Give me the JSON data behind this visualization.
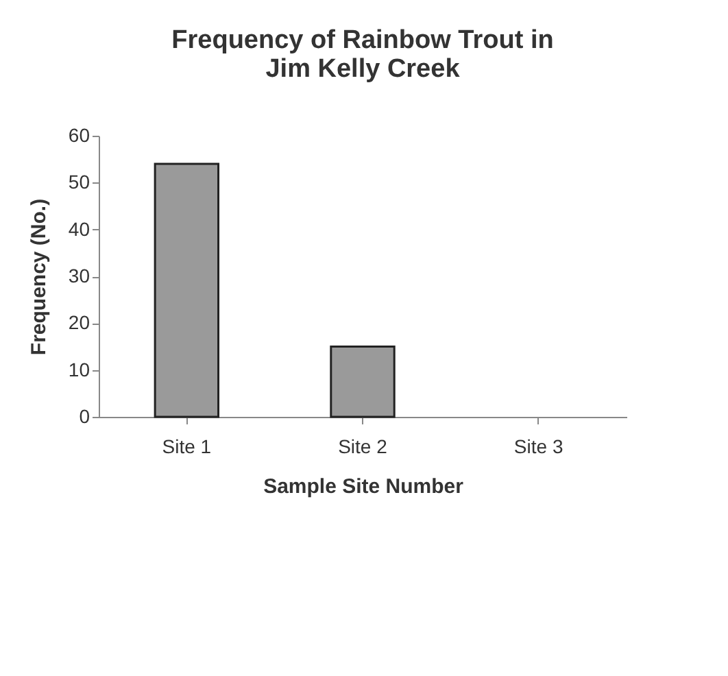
{
  "chart_data": {
    "type": "bar",
    "title": [
      "Frequency of Rainbow Trout in",
      "Jim Kelly Creek"
    ],
    "xlabel": "Sample Site Number",
    "ylabel": "Frequency (No.)",
    "categories": [
      "Site 1",
      "Site 2",
      "Site 3"
    ],
    "values": [
      54,
      15,
      0
    ],
    "color": "#9a9a9a",
    "ylim": [
      0,
      60
    ],
    "yticks": [
      0,
      10,
      20,
      30,
      40,
      50,
      60
    ],
    "grid": false
  }
}
